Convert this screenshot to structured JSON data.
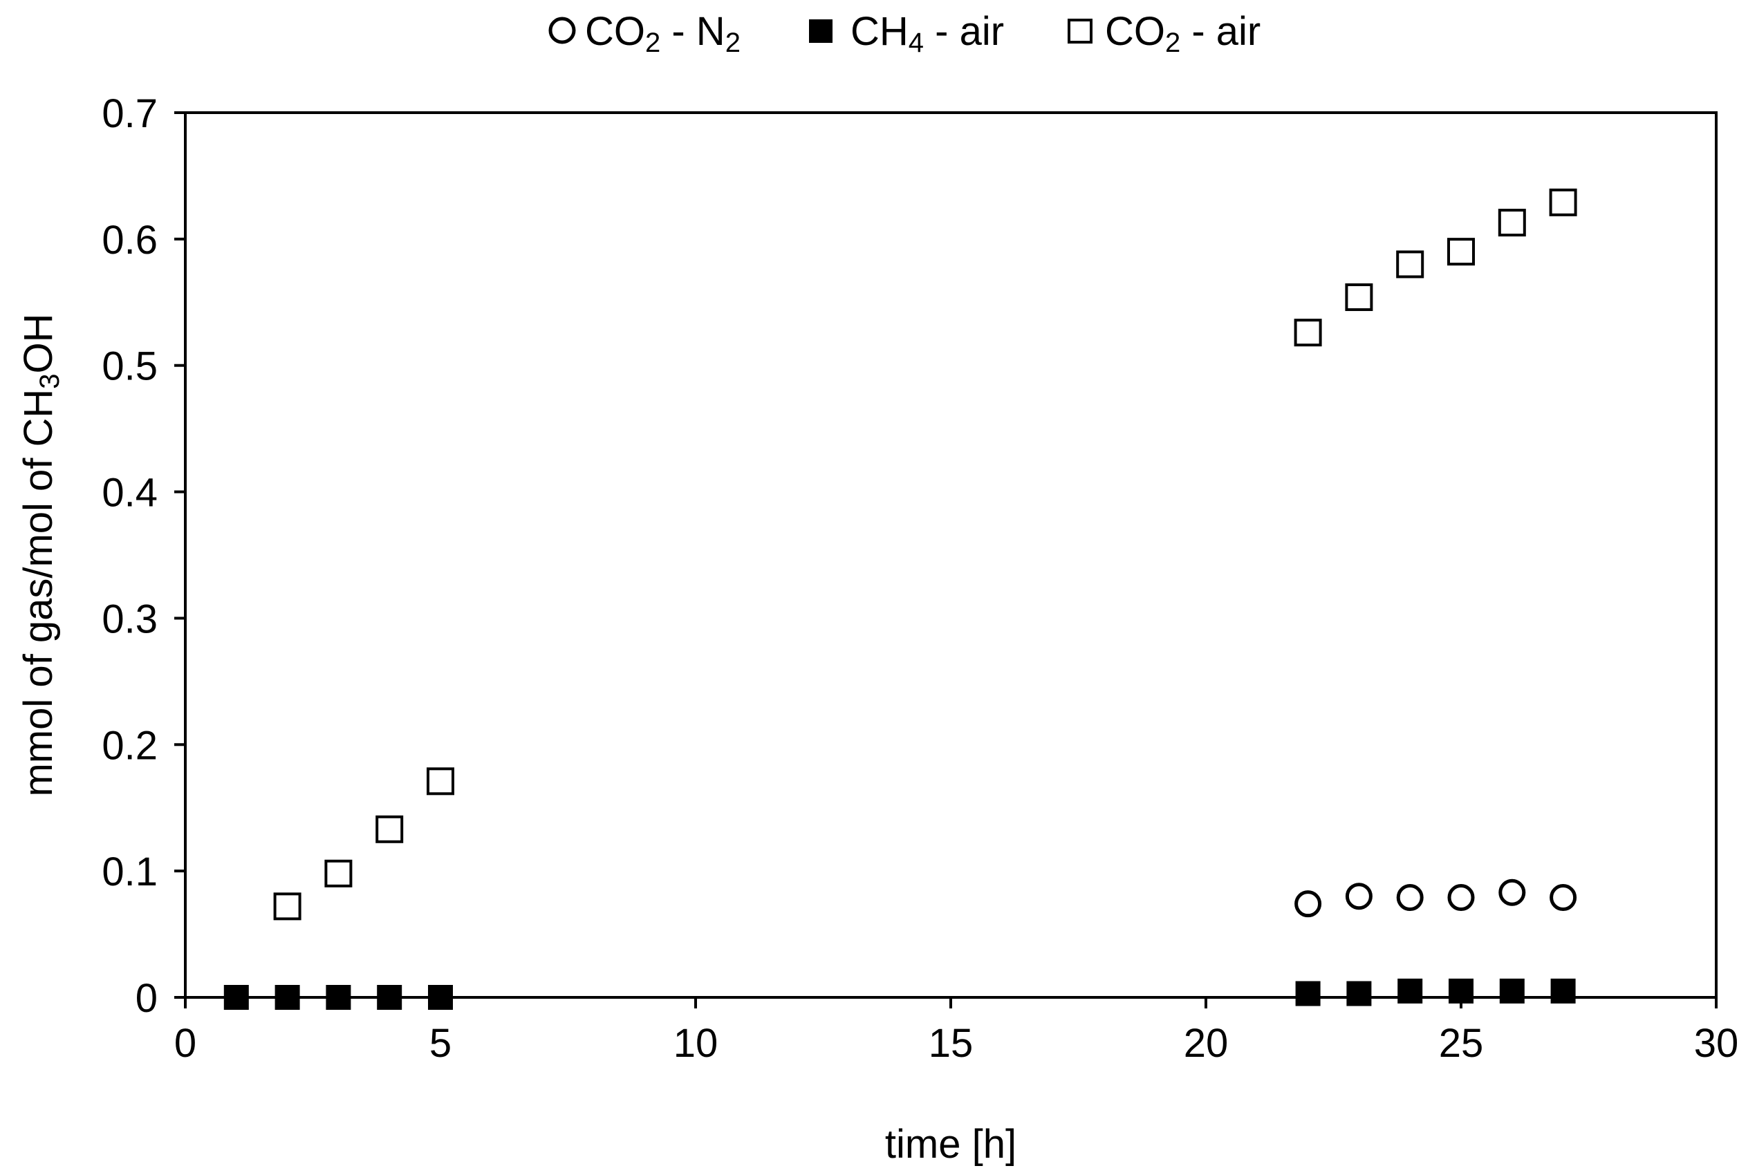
{
  "chart_data": {
    "type": "scatter",
    "title": "",
    "xlabel": "time [h]",
    "ylabel": {
      "parts": [
        "mmol of gas/mol of CH",
        "3",
        "OH"
      ],
      "full": "mmol of gas/mol of CH3OH"
    },
    "xlim": [
      0,
      30
    ],
    "ylim": [
      0,
      0.7
    ],
    "xticks": [
      0,
      5,
      10,
      15,
      20,
      25,
      30
    ],
    "xtick_labels": [
      "0",
      "5",
      "10",
      "15",
      "20",
      "25",
      "30"
    ],
    "yticks": [
      0,
      0.1,
      0.2,
      0.3,
      0.4,
      0.5,
      0.6,
      0.7
    ],
    "ytick_labels": [
      "0",
      "0.1",
      "0.2",
      "0.3",
      "0.4",
      "0.5",
      "0.6",
      "0.7"
    ],
    "grid": false,
    "legend_position": "top",
    "series": [
      {
        "name": "CO2 - N2",
        "legend_parts": [
          "CO",
          "2",
          " - N",
          "2"
        ],
        "marker": "open-circle",
        "x": [
          22,
          23,
          24,
          25,
          26,
          27
        ],
        "y": [
          0.074,
          0.08,
          0.079,
          0.079,
          0.083,
          0.079
        ]
      },
      {
        "name": "CH4 - air",
        "legend_parts": [
          "CH",
          "4",
          " - air"
        ],
        "marker": "filled-square",
        "x": [
          1,
          2,
          3,
          4,
          5,
          22,
          23,
          24,
          25,
          26,
          27
        ],
        "y": [
          0,
          0,
          0,
          0,
          0,
          0.003,
          0.003,
          0.005,
          0.005,
          0.005,
          0.005
        ]
      },
      {
        "name": "CO2 - air",
        "legend_parts": [
          "CO",
          "2",
          " - air"
        ],
        "marker": "open-square",
        "x": [
          2,
          3,
          4,
          5,
          22,
          23,
          24,
          25,
          26,
          27
        ],
        "y": [
          0.072,
          0.098,
          0.133,
          0.171,
          0.526,
          0.554,
          0.58,
          0.59,
          0.613,
          0.629
        ]
      }
    ]
  }
}
